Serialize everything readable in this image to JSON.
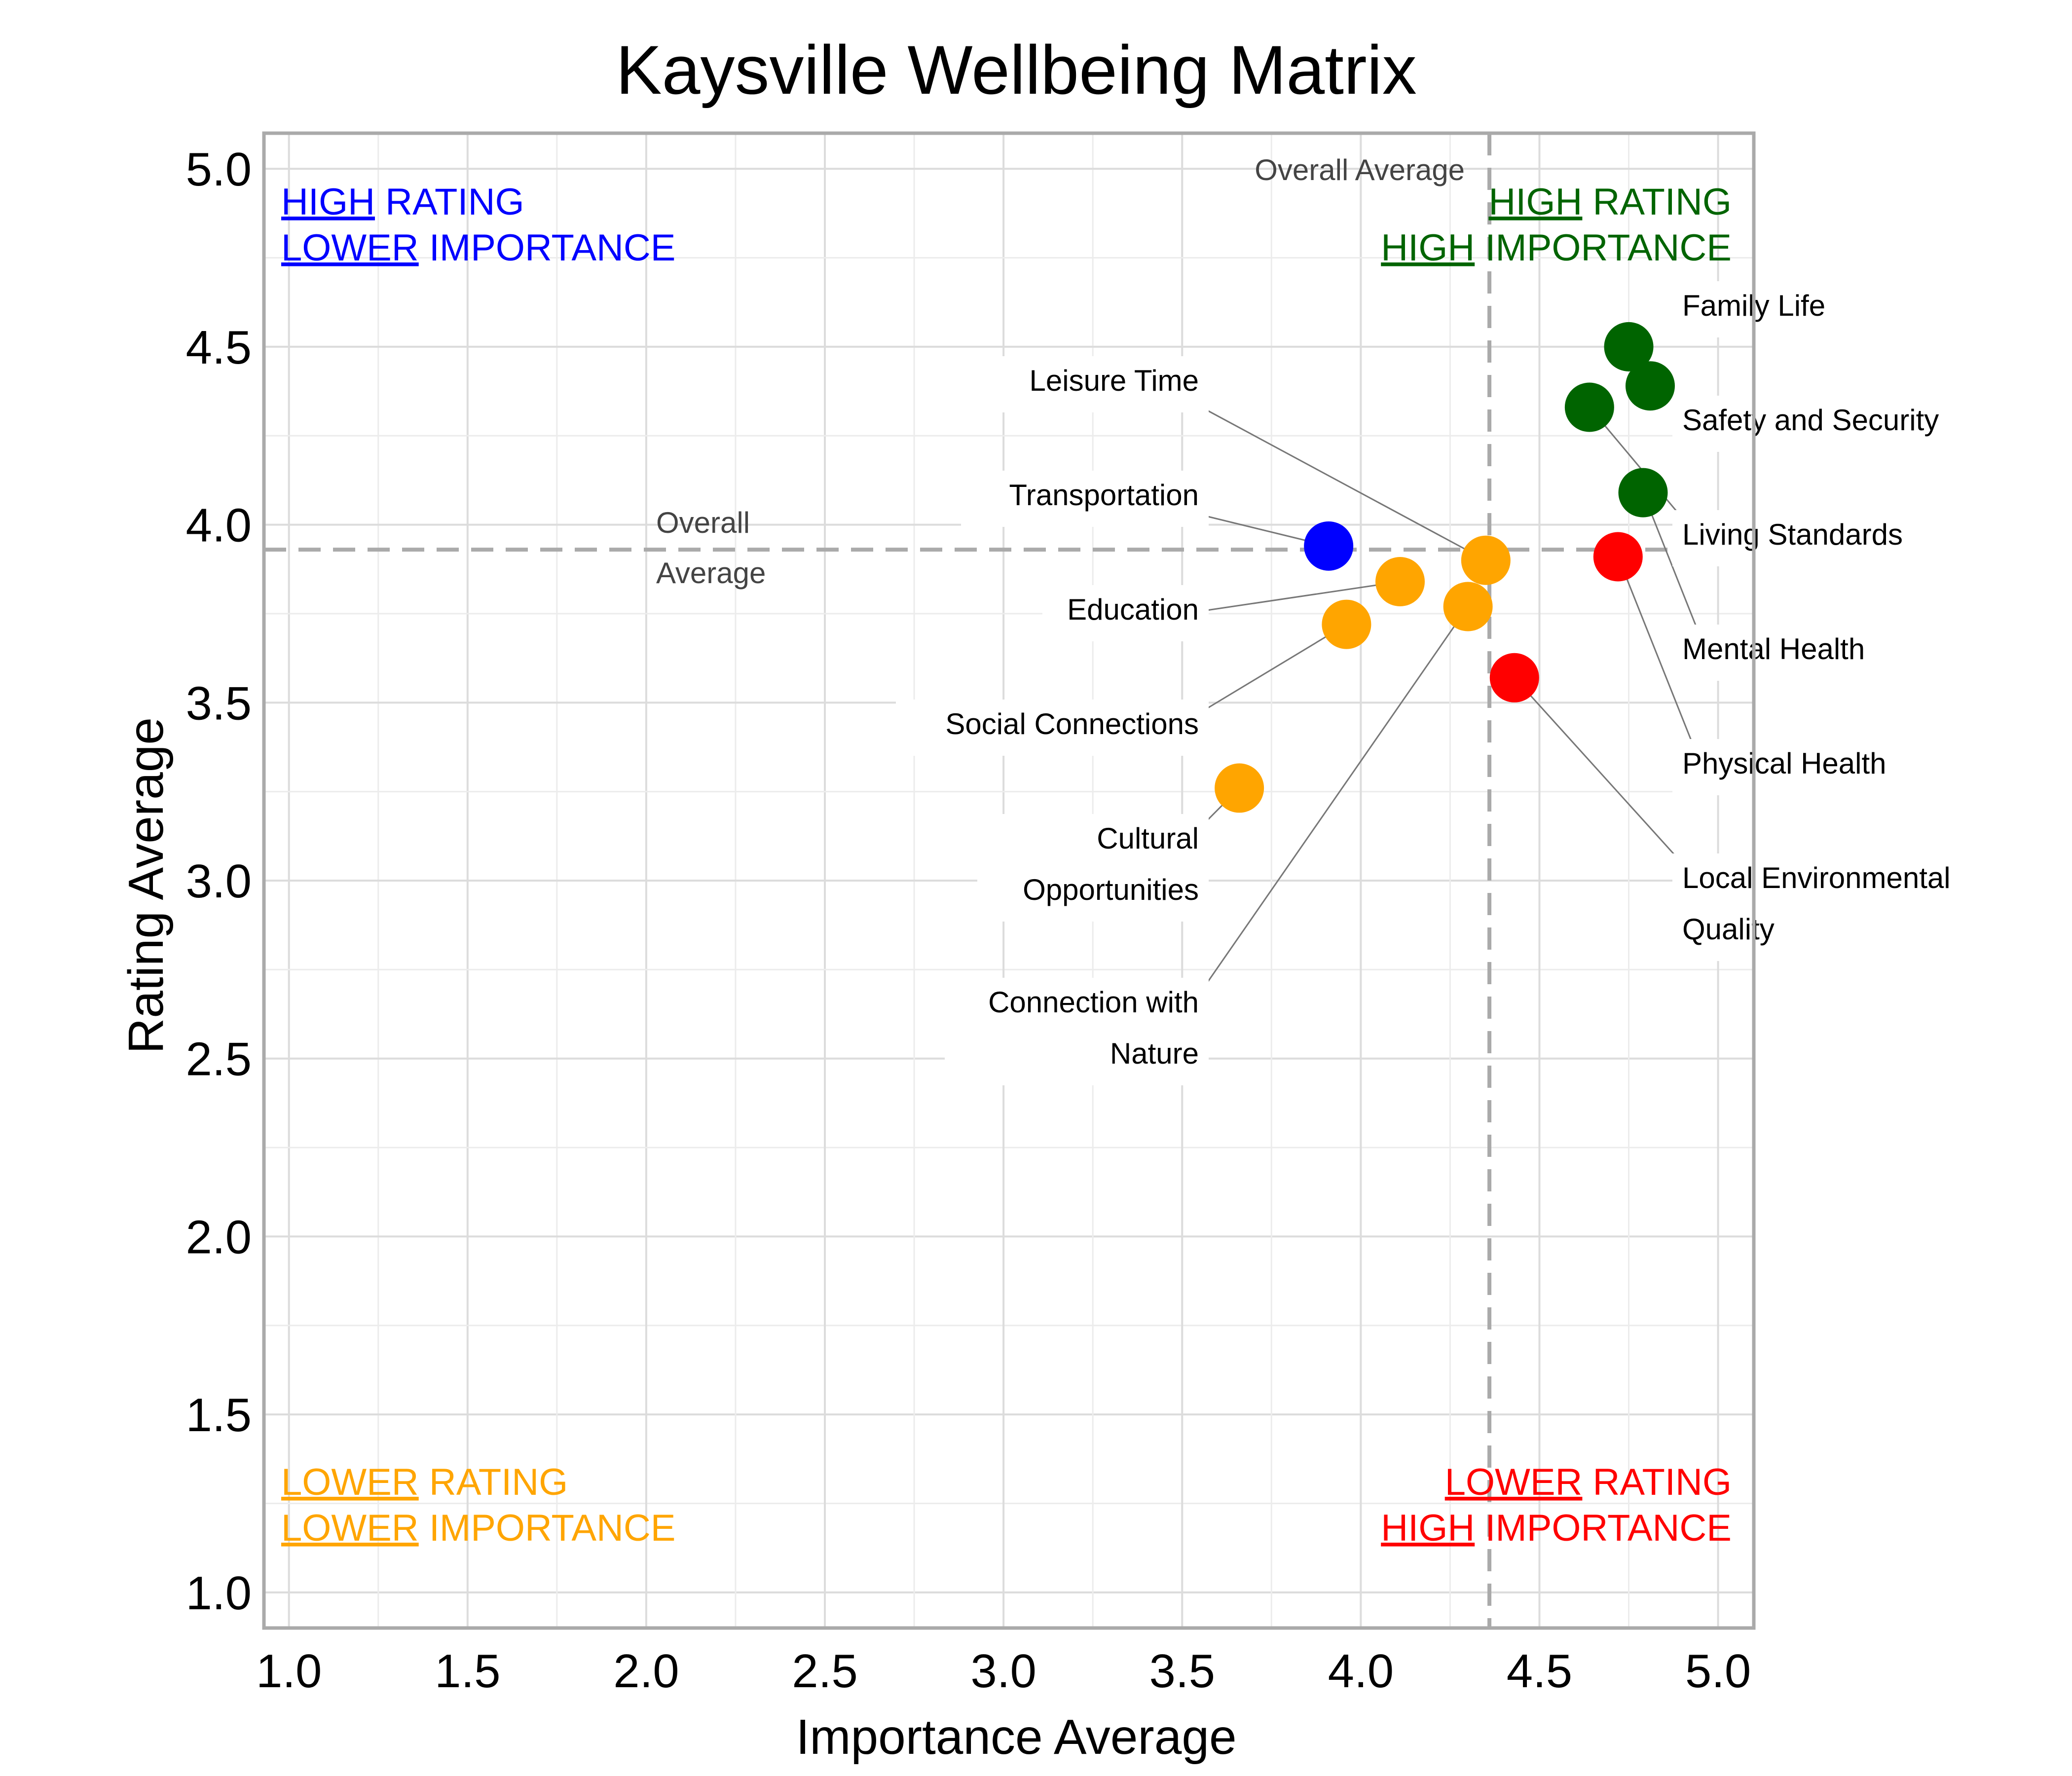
{
  "chart_data": {
    "type": "scatter",
    "title": "Kaysville Wellbeing Matrix",
    "xlabel": "Importance Average",
    "ylabel": "Rating Average",
    "xlim": [
      0.93,
      5.1
    ],
    "ylim": [
      0.9,
      5.1
    ],
    "xticks": [
      "1.0",
      "1.5",
      "2.0",
      "2.5",
      "3.0",
      "3.5",
      "4.0",
      "4.5",
      "5.0"
    ],
    "yticks": [
      "1.0",
      "1.5",
      "2.0",
      "2.5",
      "3.0",
      "3.5",
      "4.0",
      "4.5",
      "5.0"
    ],
    "grid": true,
    "reference_lines": {
      "x_average": 4.36,
      "y_average": 3.93,
      "x_average_label": "Overall Average",
      "y_average_label": [
        "Overall",
        "Average"
      ]
    },
    "points": [
      {
        "label": [
          "Family Life"
        ],
        "x": 4.75,
        "y": 4.5,
        "color": "#006400"
      },
      {
        "label": [
          "Safety and Security"
        ],
        "x": 4.81,
        "y": 4.39,
        "color": "#006400"
      },
      {
        "label": [
          "Living Standards"
        ],
        "x": 4.64,
        "y": 4.33,
        "color": "#006400"
      },
      {
        "label": [
          "Mental Health"
        ],
        "x": 4.79,
        "y": 4.09,
        "color": "#006400"
      },
      {
        "label": [
          "Physical Health"
        ],
        "x": 4.72,
        "y": 3.91,
        "color": "#ff0000"
      },
      {
        "label": [
          "Local Environmental",
          "Quality"
        ],
        "x": 4.43,
        "y": 3.57,
        "color": "#ff0000"
      },
      {
        "label": [
          "Leisure Time"
        ],
        "x": 4.35,
        "y": 3.9,
        "color": "#ffa500"
      },
      {
        "label": [
          "Transportation"
        ],
        "x": 3.91,
        "y": 3.94,
        "color": "#0000ff"
      },
      {
        "label": [
          "Education"
        ],
        "x": 4.11,
        "y": 3.84,
        "color": "#ffa500"
      },
      {
        "label": [
          "Social Connections"
        ],
        "x": 3.96,
        "y": 3.72,
        "color": "#ffa500"
      },
      {
        "label": [
          "Cultural",
          "Opportunities"
        ],
        "x": 3.66,
        "y": 3.26,
        "color": "#ffa500"
      },
      {
        "label": [
          "Connection with",
          "Nature"
        ],
        "x": 4.3,
        "y": 3.77,
        "color": "#ffa500"
      }
    ],
    "quadrants": [
      {
        "position": "top-left",
        "color": "#0000ff",
        "lines": [
          [
            "HIGH",
            " RATING"
          ],
          [
            "LOWER",
            " IMPORTANCE"
          ]
        ]
      },
      {
        "position": "top-right",
        "color": "#006400",
        "lines": [
          [
            "HIGH",
            " RATING"
          ],
          [
            "HIGH",
            " IMPORTANCE"
          ]
        ]
      },
      {
        "position": "bottom-left",
        "color": "#ffa500",
        "lines": [
          [
            "LOWER",
            " RATING"
          ],
          [
            "LOWER",
            " IMPORTANCE"
          ]
        ]
      },
      {
        "position": "bottom-right",
        "color": "#ff0000",
        "lines": [
          [
            "LOWER",
            " RATING"
          ],
          [
            "HIGH",
            " IMPORTANCE"
          ]
        ]
      }
    ]
  }
}
